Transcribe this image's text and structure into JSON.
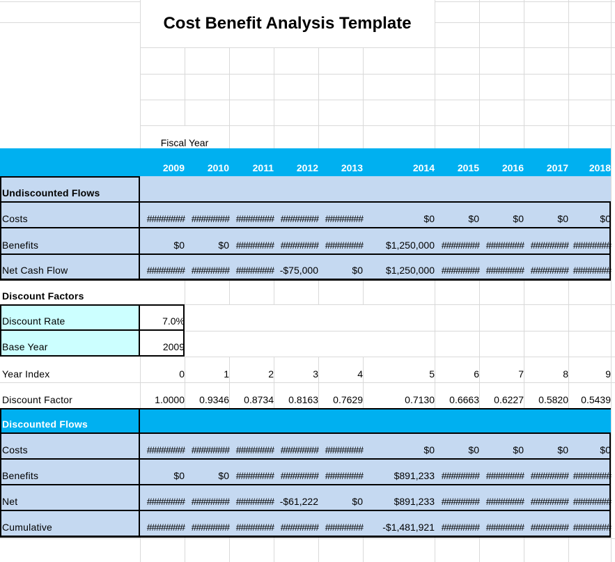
{
  "title": "Cost Benefit Analysis Template",
  "fiscal_year_label": "Fiscal Year",
  "years": [
    "2009",
    "2010",
    "2011",
    "2012",
    "2013",
    "2014",
    "2015",
    "2016",
    "2017",
    "2018"
  ],
  "sections": {
    "undiscounted": {
      "header": "Undiscounted Flows",
      "rows": [
        {
          "label": "Costs",
          "values": [
            "########",
            "########",
            "########",
            "########",
            "########",
            "$0",
            "$0",
            "$0",
            "$0",
            "$0"
          ]
        },
        {
          "label": "Benefits",
          "values": [
            "$0",
            "$0",
            "########",
            "########",
            "########",
            "$1,250,000",
            "########",
            "########",
            "########",
            "########"
          ]
        },
        {
          "label": "Net Cash Flow",
          "values": [
            "########",
            "########",
            "########",
            "-$75,000",
            "$0",
            "$1,250,000",
            "########",
            "########",
            "########",
            "########"
          ]
        }
      ]
    },
    "discount_factors": {
      "header": "Discount Factors",
      "discount_rate_label": "Discount Rate",
      "discount_rate_value": "7.0%",
      "base_year_label": "Base Year",
      "base_year_value": "2009",
      "year_index_label": "Year Index",
      "year_index_values": [
        "0",
        "1",
        "2",
        "3",
        "4",
        "5",
        "6",
        "7",
        "8",
        "9"
      ],
      "discount_factor_label": "Discount Factor",
      "discount_factor_values": [
        "1.0000",
        "0.9346",
        "0.8734",
        "0.8163",
        "0.7629",
        "0.7130",
        "0.6663",
        "0.6227",
        "0.5820",
        "0.5439"
      ]
    },
    "discounted": {
      "header": "Discounted Flows",
      "rows": [
        {
          "label": "Costs",
          "values": [
            "########",
            "########",
            "########",
            "########",
            "########",
            "$0",
            "$0",
            "$0",
            "$0",
            "$0"
          ]
        },
        {
          "label": "Benefits",
          "values": [
            "$0",
            "$0",
            "########",
            "########",
            "########",
            "$891,233",
            "########",
            "########",
            "########",
            "########"
          ]
        },
        {
          "label": "Net",
          "values": [
            "########",
            "########",
            "########",
            "-$61,222",
            "$0",
            "$891,233",
            "########",
            "########",
            "########",
            "########"
          ]
        },
        {
          "label": "Cumulative",
          "values": [
            "########",
            "########",
            "########",
            "########",
            "########",
            "-$1,481,921",
            "########",
            "########",
            "########",
            "########"
          ]
        }
      ]
    }
  },
  "colors": {
    "header_band": "#00B0F0",
    "section_fill": "#C5D9F1",
    "input_fill": "#CCFFFF",
    "gridline": "#D9D9D9"
  }
}
